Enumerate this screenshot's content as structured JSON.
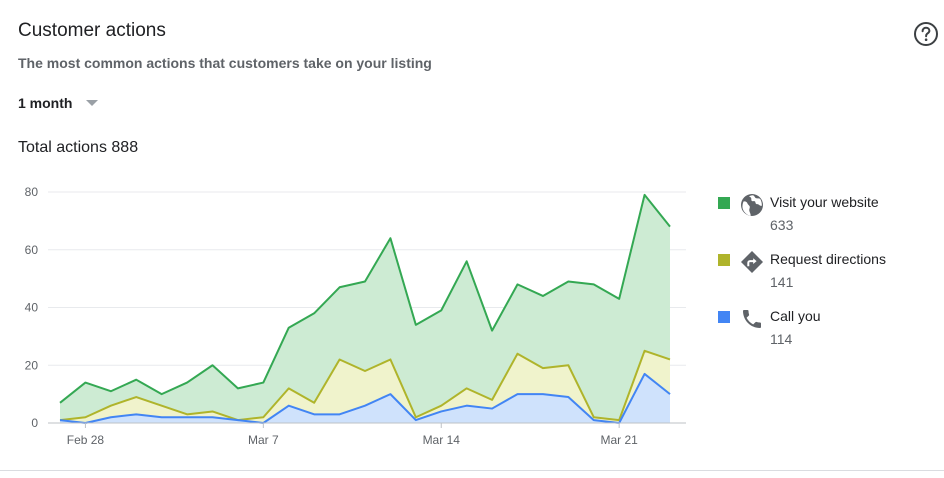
{
  "header": {
    "title": "Customer actions",
    "subtitle": "The most common actions that customers take on your listing",
    "help_icon": "help-circle-icon"
  },
  "period": {
    "selected": "1 month",
    "caret_icon": "dropdown-caret-icon"
  },
  "total": {
    "label": "Total actions",
    "value": "888"
  },
  "legend": [
    {
      "label": "Visit your website",
      "value": "633",
      "color": "#34a853",
      "icon": "globe-icon"
    },
    {
      "label": "Request directions",
      "value": "141",
      "color": "#afb42b",
      "icon": "directions-icon"
    },
    {
      "label": "Call you",
      "value": "114",
      "color": "#4285f4",
      "icon": "phone-icon"
    }
  ],
  "chart_data": {
    "type": "area",
    "stacked": true,
    "ylim": [
      0,
      80
    ],
    "yticks": [
      0,
      20,
      40,
      60,
      80
    ],
    "xtick_labels": [
      "Feb 28",
      "Mar 7",
      "Mar 14",
      "Mar 21"
    ],
    "xtick_indices": [
      1,
      8,
      15,
      22
    ],
    "grid": true,
    "legend_position": "right",
    "series": [
      {
        "name": "Call you",
        "color": "#4285f4",
        "fill": "#cfe2fc",
        "values": [
          1,
          0,
          2,
          3,
          2,
          2,
          2,
          1,
          0,
          6,
          3,
          3,
          6,
          10,
          1,
          4,
          6,
          5,
          10,
          10,
          9,
          1,
          0,
          17,
          10
        ]
      },
      {
        "name": "Request directions",
        "color": "#afb42b",
        "fill": "#f0f3cc",
        "values": [
          1,
          2,
          6,
          9,
          6,
          3,
          4,
          1,
          2,
          12,
          7,
          22,
          18,
          22,
          2,
          6,
          12,
          8,
          24,
          19,
          20,
          2,
          1,
          25,
          22
        ]
      },
      {
        "name": "Visit your website",
        "color": "#34a853",
        "fill": "#cdebd3",
        "values": [
          7,
          14,
          11,
          15,
          10,
          14,
          20,
          12,
          14,
          33,
          38,
          47,
          49,
          64,
          34,
          39,
          56,
          32,
          48,
          44,
          49,
          48,
          43,
          79,
          68
        ]
      }
    ]
  }
}
